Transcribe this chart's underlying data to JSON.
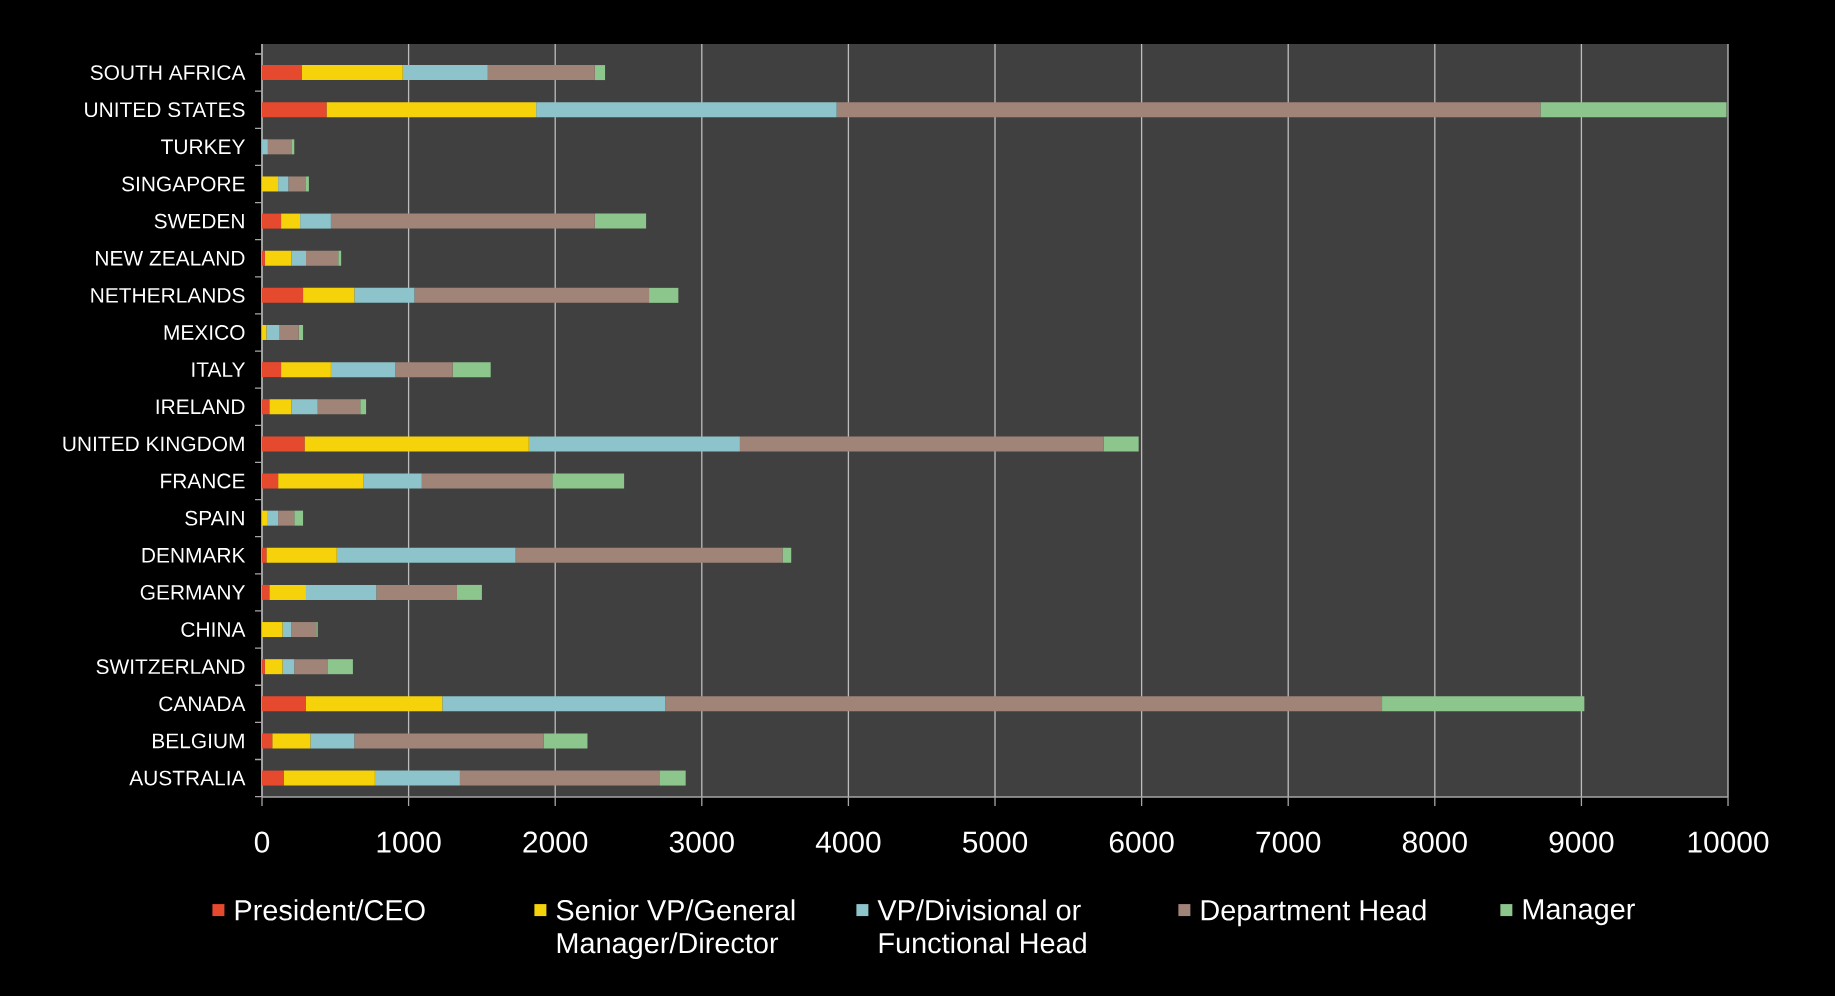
{
  "chart_data": {
    "type": "bar",
    "orientation": "horizontal",
    "stacked": true,
    "categories": [
      "SOUTH AFRICA",
      "UNITED STATES",
      "TURKEY",
      "SINGAPORE",
      "SWEDEN",
      "NEW ZEALAND",
      "NETHERLANDS",
      "MEXICO",
      "ITALY",
      "IRELAND",
      "UNITED KINGDOM",
      "FRANCE",
      "SPAIN",
      "DENMARK",
      "GERMANY",
      "CHINA",
      "SWITZERLAND",
      "CANADA",
      "BELGIUM",
      "AUSTRALIA"
    ],
    "series": [
      {
        "name": "President/CEO",
        "color": "#e64a2e",
        "values": [
          270,
          440,
          null,
          null,
          130,
          20,
          280,
          null,
          130,
          50,
          290,
          110,
          null,
          30,
          50,
          null,
          20,
          300,
          70,
          150
        ]
      },
      {
        "name": "Senior VP/General Manager/Director",
        "color": "#f5d20a",
        "values": [
          690,
          1430,
          null,
          110,
          130,
          180,
          350,
          30,
          340,
          150,
          1530,
          580,
          40,
          480,
          250,
          140,
          120,
          930,
          260,
          620
        ]
      },
      {
        "name": "VP/Divisional or Functional Head",
        "color": "#8dc3ca",
        "values": [
          580,
          2050,
          40,
          70,
          210,
          100,
          410,
          90,
          440,
          180,
          1440,
          400,
          70,
          1220,
          480,
          60,
          80,
          1520,
          300,
          580
        ]
      },
      {
        "name": "Department Head",
        "color": "#a08478",
        "values": [
          730,
          4800,
          160,
          120,
          1800,
          220,
          1600,
          130,
          390,
          290,
          2480,
          890,
          110,
          1820,
          550,
          170,
          230,
          4890,
          1290,
          1360
        ]
      },
      {
        "name": "Manager",
        "color": "#8cc68c",
        "values": [
          70,
          1270,
          20,
          20,
          350,
          20,
          200,
          30,
          260,
          40,
          240,
          490,
          60,
          60,
          170,
          10,
          170,
          1380,
          300,
          180
        ]
      }
    ],
    "xlim": [
      0,
      10000
    ],
    "xticks": [
      0,
      1000,
      2000,
      3000,
      4000,
      5000,
      6000,
      7000,
      8000,
      9000,
      10000
    ],
    "grid": "x",
    "legend": "bottom"
  }
}
